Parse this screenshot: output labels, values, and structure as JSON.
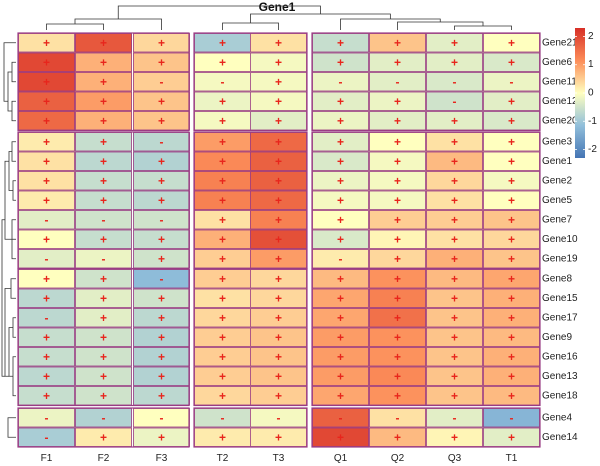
{
  "chart_data": {
    "type": "heatmap",
    "title": "Gene1",
    "columns": [
      "F1",
      "F2",
      "F3",
      "T2",
      "T3",
      "Q1",
      "Q2",
      "Q3",
      "T1"
    ],
    "column_groups": [
      [
        "F1",
        "F2",
        "F3"
      ],
      [
        "T2",
        "T3"
      ],
      [
        "Q1",
        "Q2",
        "Q3",
        "T1"
      ]
    ],
    "row_groups": [
      [
        "Gene21",
        "Gene6",
        "Gene11",
        "Gene12",
        "Gene20"
      ],
      [
        "Gene3",
        "Gene1",
        "Gene2",
        "Gene5",
        "Gene7",
        "Gene10",
        "Gene19"
      ],
      [
        "Gene8",
        "Gene15",
        "Gene17",
        "Gene9",
        "Gene16",
        "Gene13",
        "Gene18"
      ],
      [
        "Gene4",
        "Gene14"
      ]
    ],
    "rows": [
      {
        "gene": "Gene21",
        "values": [
          0.3,
          1.8,
          0.4,
          -0.9,
          0.3,
          -0.6,
          0.6,
          -0.3,
          0.0
        ],
        "signs": [
          "+",
          "+",
          "+",
          "+",
          "+",
          "+",
          "+",
          "+",
          "+"
        ]
      },
      {
        "gene": "Gene6",
        "values": [
          2.0,
          0.8,
          0.6,
          0.0,
          -0.1,
          -0.5,
          -0.3,
          -0.3,
          -0.4
        ],
        "signs": [
          "+",
          "+",
          "+",
          "+",
          "+",
          "+",
          "+",
          "+",
          "+"
        ]
      },
      {
        "gene": "Gene11",
        "values": [
          2.0,
          0.8,
          0.5,
          -0.1,
          -0.1,
          -0.2,
          -0.3,
          -0.4,
          -0.2
        ],
        "signs": [
          "+",
          "+",
          "-",
          "-",
          "+",
          "-",
          "-",
          "-",
          "-"
        ]
      },
      {
        "gene": "Gene12",
        "values": [
          1.7,
          1.0,
          0.6,
          -0.2,
          -0.1,
          -0.3,
          -0.2,
          -0.5,
          -0.3
        ],
        "signs": [
          "+",
          "+",
          "+",
          "+",
          "+",
          "+",
          "+",
          "-",
          "+"
        ]
      },
      {
        "gene": "Gene20",
        "values": [
          1.6,
          0.8,
          0.6,
          -0.1,
          -0.3,
          -0.2,
          -0.3,
          -0.3,
          -0.4
        ],
        "signs": [
          "+",
          "+",
          "+",
          "+",
          "+",
          "+",
          "+",
          "+",
          "+"
        ]
      },
      {
        "gene": "Gene3",
        "values": [
          0.2,
          -0.6,
          -0.7,
          1.0,
          1.6,
          -0.3,
          0.0,
          0.3,
          0.0
        ],
        "signs": [
          "+",
          "+",
          "-",
          "+",
          "+",
          "+",
          "+",
          "+",
          "+"
        ]
      },
      {
        "gene": "Gene1",
        "values": [
          0.3,
          -0.7,
          -0.8,
          1.2,
          1.7,
          -0.4,
          -0.1,
          0.7,
          0.0
        ],
        "signs": [
          "+",
          "+",
          "+",
          "+",
          "+",
          "+",
          "+",
          "+",
          "+"
        ]
      },
      {
        "gene": "Gene2",
        "values": [
          0.3,
          -0.6,
          -0.6,
          1.3,
          1.7,
          -0.2,
          -0.1,
          0.4,
          -0.1
        ],
        "signs": [
          "+",
          "+",
          "+",
          "+",
          "+",
          "+",
          "+",
          "+",
          "+"
        ]
      },
      {
        "gene": "Gene5",
        "values": [
          0.2,
          -0.6,
          -0.7,
          1.3,
          1.6,
          -0.1,
          -0.1,
          0.3,
          0.0
        ],
        "signs": [
          "+",
          "+",
          "+",
          "+",
          "+",
          "+",
          "+",
          "+",
          "+"
        ]
      },
      {
        "gene": "Gene7",
        "values": [
          -0.3,
          -0.5,
          -0.5,
          0.3,
          1.3,
          0.0,
          0.5,
          0.5,
          0.6
        ],
        "signs": [
          "-",
          "-",
          "-",
          "+",
          "+",
          "+",
          "+",
          "+",
          "+"
        ]
      },
      {
        "gene": "Gene10",
        "values": [
          0.0,
          -0.6,
          -0.6,
          0.8,
          1.9,
          -0.4,
          0.1,
          0.3,
          0.4
        ],
        "signs": [
          "+",
          "+",
          "+",
          "+",
          "+",
          "+",
          "+",
          "+",
          "+"
        ]
      },
      {
        "gene": "Gene19",
        "values": [
          -0.3,
          -0.2,
          -0.5,
          0.5,
          1.0,
          0.2,
          0.4,
          0.8,
          0.6
        ],
        "signs": [
          "-",
          "-",
          "+",
          "+",
          "+",
          "-",
          "+",
          "+",
          "+"
        ]
      },
      {
        "gene": "Gene8",
        "values": [
          0.0,
          -0.5,
          -1.2,
          0.5,
          0.4,
          0.7,
          1.1,
          0.7,
          0.9
        ],
        "signs": [
          "+",
          "+",
          "-",
          "+",
          "+",
          "+",
          "+",
          "+",
          "+"
        ]
      },
      {
        "gene": "Gene15",
        "values": [
          -0.7,
          -0.3,
          -0.5,
          0.3,
          0.4,
          0.9,
          1.3,
          0.6,
          0.8
        ],
        "signs": [
          "+",
          "+",
          "+",
          "+",
          "+",
          "+",
          "+",
          "+",
          "+"
        ]
      },
      {
        "gene": "Gene17",
        "values": [
          -0.7,
          -0.3,
          -0.7,
          0.4,
          0.5,
          0.9,
          1.5,
          0.6,
          0.8
        ],
        "signs": [
          "-",
          "+",
          "+",
          "+",
          "+",
          "+",
          "+",
          "+",
          "+"
        ]
      },
      {
        "gene": "Gene9",
        "values": [
          -0.6,
          -0.5,
          -0.8,
          0.5,
          0.6,
          1.0,
          1.1,
          0.6,
          0.7
        ],
        "signs": [
          "+",
          "+",
          "+",
          "+",
          "+",
          "+",
          "+",
          "+",
          "+"
        ]
      },
      {
        "gene": "Gene16",
        "values": [
          -0.6,
          -0.5,
          -0.8,
          0.5,
          0.6,
          1.0,
          1.1,
          0.6,
          0.8
        ],
        "signs": [
          "+",
          "+",
          "+",
          "+",
          "+",
          "+",
          "+",
          "+",
          "+"
        ]
      },
      {
        "gene": "Gene13",
        "values": [
          -0.7,
          -0.5,
          -0.8,
          0.5,
          0.6,
          1.0,
          1.2,
          0.6,
          0.8
        ],
        "signs": [
          "+",
          "+",
          "+",
          "+",
          "+",
          "+",
          "+",
          "+",
          "+"
        ]
      },
      {
        "gene": "Gene18",
        "values": [
          -0.6,
          -0.5,
          -0.7,
          0.4,
          0.5,
          0.9,
          1.1,
          0.6,
          0.7
        ],
        "signs": [
          "+",
          "+",
          "+",
          "+",
          "+",
          "+",
          "+",
          "+",
          "+"
        ]
      },
      {
        "gene": "Gene4",
        "values": [
          -0.2,
          -0.8,
          0.0,
          -0.5,
          -0.1,
          1.7,
          0.3,
          -0.3,
          -1.3
        ],
        "signs": [
          "-",
          "-",
          "-",
          "-",
          "-",
          "-",
          "-",
          "-",
          "-"
        ]
      },
      {
        "gene": "Gene14",
        "values": [
          -0.9,
          0.2,
          -0.2,
          0.2,
          0.2,
          2.0,
          0.7,
          0.1,
          -0.3
        ],
        "signs": [
          "-",
          "+",
          "+",
          "+",
          "+",
          "+",
          "+",
          "+",
          "+"
        ]
      }
    ],
    "legend": {
      "ticks": [
        2,
        1,
        0,
        -1,
        -2
      ],
      "min": -2.3,
      "max": 2.3,
      "placement": "right"
    },
    "colors": {
      "low": "#4575b4",
      "mid": "#ffffbf",
      "high": "#d73027",
      "border": "#9a3c84",
      "symbol": "#e8251c"
    }
  }
}
